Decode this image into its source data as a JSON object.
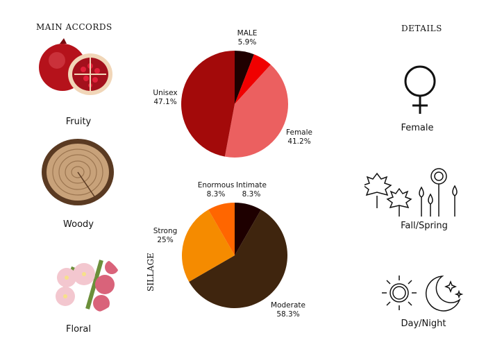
{
  "headings": {
    "accords": "MAIN ACCORDS",
    "details": "DETAILS",
    "sillage": "SILLAGE"
  },
  "accords": [
    {
      "label": "Fruity",
      "image": "pomegranate"
    },
    {
      "label": "Woody",
      "image": "wood-slice"
    },
    {
      "label": "Floral",
      "image": "blossoms"
    }
  ],
  "details": [
    {
      "label": "Female",
      "icon": "venus-icon"
    },
    {
      "label": "Fall/Spring",
      "icon": "leaves-flowers-icon"
    },
    {
      "label": "Day/Night",
      "icon": "sun-moon-icon"
    }
  ],
  "chart_data": [
    {
      "type": "pie",
      "title": "",
      "slices": [
        {
          "label": "MALE",
          "value": 5.9,
          "text": "5.9%",
          "color": "#1f0000"
        },
        {
          "label": "",
          "value": 5.9,
          "text": "",
          "color": "#f00000"
        },
        {
          "label": "Female",
          "value": 41.2,
          "text": "41.2%",
          "color": "#eb6060"
        },
        {
          "label": "Unisex",
          "value": 47.1,
          "text": "47.1%",
          "color": "#a30a0a"
        }
      ]
    },
    {
      "type": "pie",
      "title": "SILLAGE",
      "slices": [
        {
          "label": "Intimate",
          "value": 8.3,
          "text": "8.3%",
          "color": "#1e0000"
        },
        {
          "label": "Moderate",
          "value": 58.3,
          "text": "58.3%",
          "color": "#3f250e"
        },
        {
          "label": "Strong",
          "value": 25,
          "text": "25%",
          "color": "#f58b00"
        },
        {
          "label": "Enormous",
          "value": 8.3,
          "text": "8.3%",
          "color": "#ff6600"
        }
      ]
    }
  ]
}
